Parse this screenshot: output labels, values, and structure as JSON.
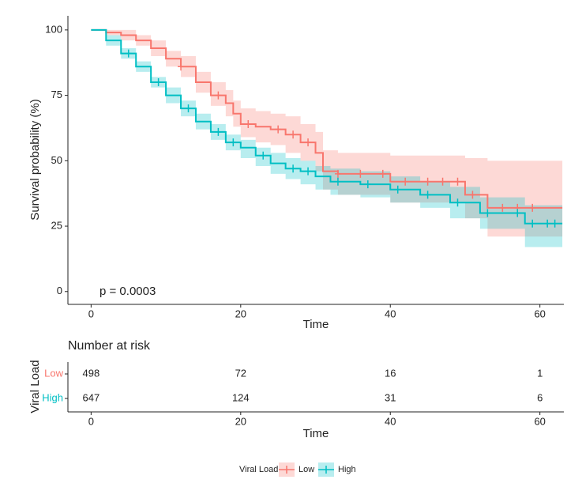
{
  "chart_data": [
    {
      "type": "step",
      "y_label": "Survival probability (%)",
      "x_label": "Time",
      "annotation": "p = 0.0003",
      "legend_title": "Viral Load",
      "xlim": [
        -3.1,
        63.2
      ],
      "xticks": [
        0,
        20,
        40,
        60
      ],
      "ylim": [
        -4.9,
        105.4
      ],
      "yticks": [
        0,
        25,
        50,
        75,
        100
      ],
      "series": [
        {
          "name": "Low",
          "color": "#F8766D",
          "x": [
            0,
            2,
            4,
            6,
            8,
            10,
            12,
            14,
            16,
            18,
            19,
            20,
            22,
            24,
            26,
            28,
            30,
            31,
            33,
            40,
            50,
            53,
            63
          ],
          "values": [
            100,
            99,
            98,
            96,
            93,
            89,
            86,
            80,
            75,
            72,
            68,
            64,
            63,
            62,
            60,
            57,
            53,
            46,
            45,
            42,
            37,
            32,
            32
          ],
          "lower": [
            100,
            98,
            96,
            94,
            90,
            86,
            82,
            76,
            71,
            67,
            63,
            59,
            57,
            56,
            53,
            50,
            46,
            39,
            37,
            34,
            28,
            21,
            20
          ],
          "upper": [
            100,
            100,
            100,
            98,
            96,
            92,
            90,
            84,
            80,
            77,
            73,
            70,
            69,
            68,
            67,
            64,
            61,
            54,
            53,
            52,
            51,
            50,
            50
          ],
          "censor_x": [
            12,
            17,
            21,
            25,
            27,
            29,
            33,
            36,
            39,
            42,
            45,
            47,
            49,
            51,
            55,
            57,
            59
          ]
        },
        {
          "name": "High",
          "color": "#00BFC4",
          "x": [
            0,
            2,
            4,
            6,
            8,
            10,
            12,
            14,
            16,
            18,
            20,
            22,
            24,
            26,
            28,
            30,
            32,
            36,
            40,
            44,
            48,
            52,
            58,
            63
          ],
          "values": [
            100,
            96,
            91,
            86,
            80,
            75,
            70,
            65,
            61,
            57,
            55,
            52,
            49,
            47,
            46,
            44,
            42,
            41,
            39,
            37,
            34,
            30,
            26,
            26
          ],
          "lower": [
            100,
            94,
            89,
            84,
            78,
            72,
            67,
            62,
            58,
            54,
            51,
            48,
            45,
            43,
            41,
            39,
            37,
            36,
            34,
            32,
            28,
            24,
            17,
            17
          ],
          "upper": [
            100,
            98,
            93,
            88,
            82,
            78,
            73,
            68,
            64,
            60,
            58,
            55,
            53,
            51,
            50,
            48,
            47,
            46,
            44,
            42,
            40,
            36,
            33,
            33
          ],
          "censor_x": [
            5,
            9,
            13,
            17,
            19,
            23,
            27,
            29,
            33,
            37,
            41,
            45,
            49,
            53,
            57,
            59,
            61,
            62
          ]
        }
      ]
    },
    {
      "type": "risk-table",
      "title": "Number at risk",
      "y_label": "Viral Load",
      "x_label": "Time",
      "xlim": [
        -3.1,
        63.2
      ],
      "xticks": [
        0,
        20,
        40,
        60
      ],
      "x": [
        0,
        20,
        40,
        60
      ],
      "series": [
        {
          "name": "Low",
          "color": "#F8766D",
          "values": [
            498,
            72,
            16,
            1
          ]
        },
        {
          "name": "High",
          "color": "#00BFC4",
          "values": [
            647,
            124,
            31,
            6
          ]
        }
      ]
    }
  ]
}
